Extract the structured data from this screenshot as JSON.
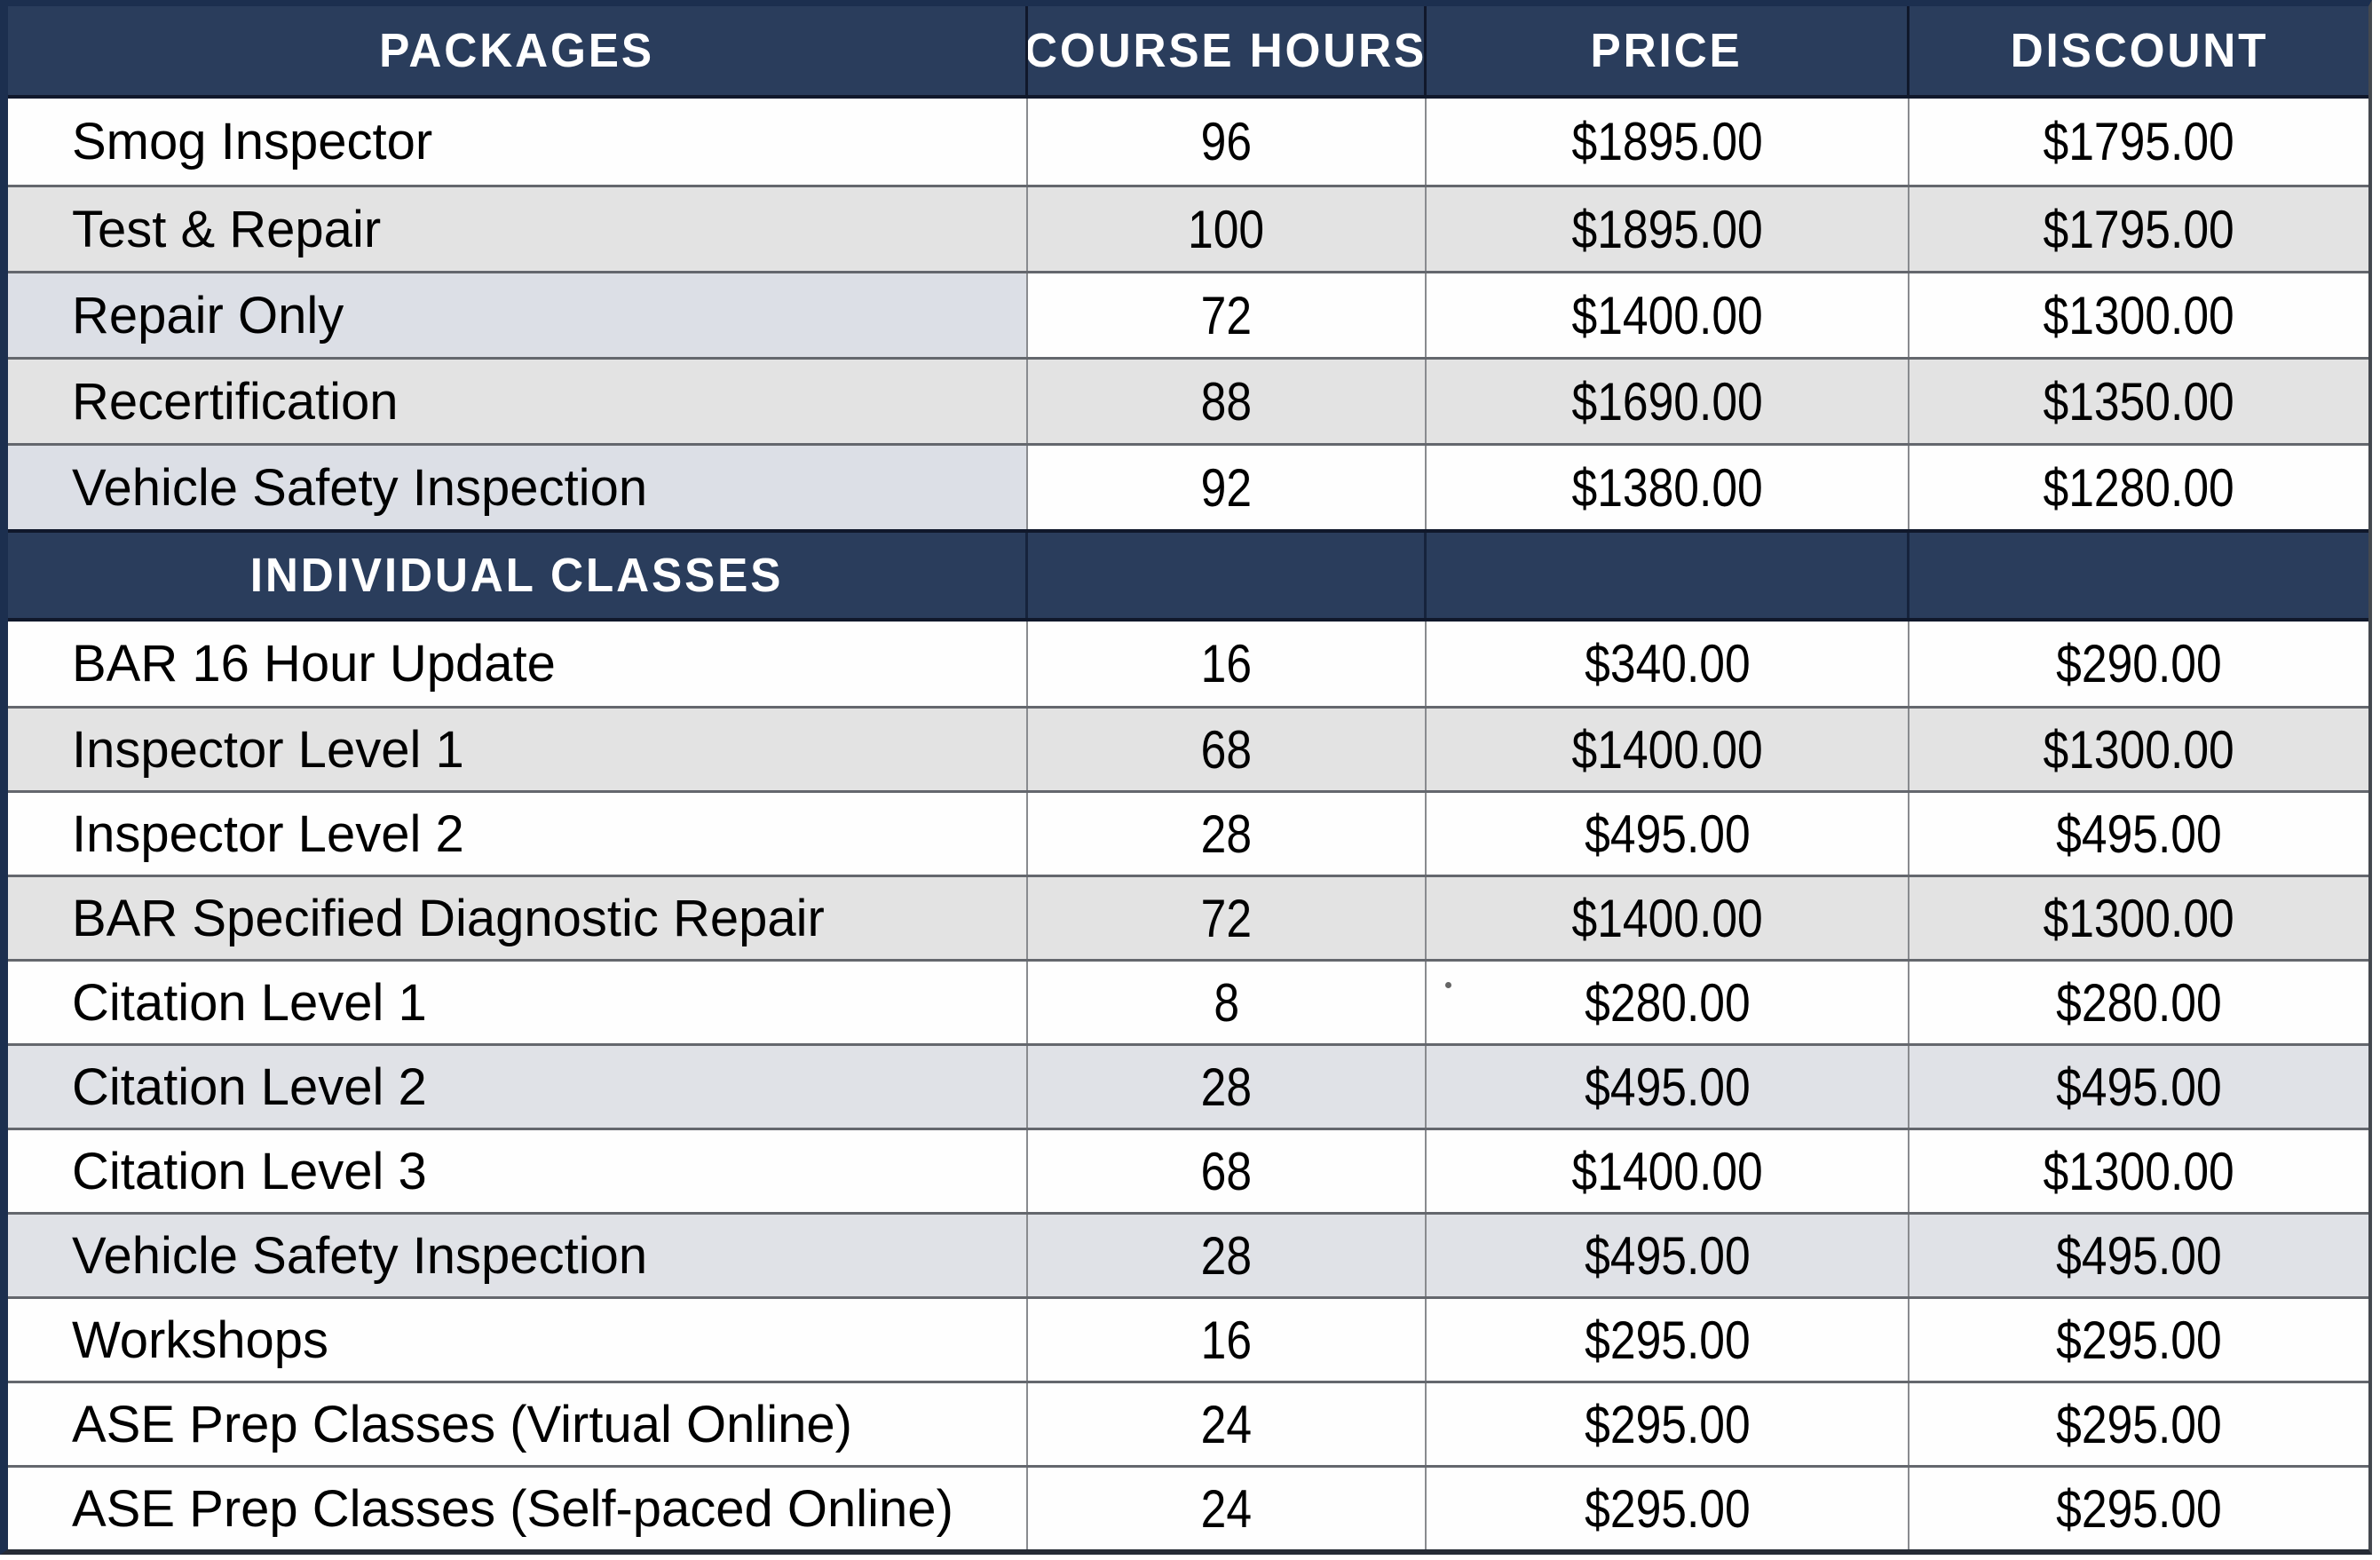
{
  "header": {
    "columns": [
      "PACKAGES",
      "COURSE HOURS",
      "PRICE",
      "DISCOUNT"
    ]
  },
  "section_label": "INDIVIDUAL CLASSES",
  "packages": [
    {
      "name": "Smog Inspector",
      "hours": "96",
      "price": "$1895.00",
      "discount": "$1795.00"
    },
    {
      "name": "Test & Repair",
      "hours": "100",
      "price": "$1895.00",
      "discount": "$1795.00"
    },
    {
      "name": "Repair Only",
      "hours": "72",
      "price": "$1400.00",
      "discount": "$1300.00"
    },
    {
      "name": "Recertification",
      "hours": "88",
      "price": "$1690.00",
      "discount": "$1350.00"
    },
    {
      "name": "Vehicle Safety Inspection",
      "hours": "92",
      "price": "$1380.00",
      "discount": "$1280.00"
    }
  ],
  "individual_classes": [
    {
      "name": "BAR 16 Hour Update",
      "hours": "16",
      "price": "$340.00",
      "discount": "$290.00"
    },
    {
      "name": "Inspector Level 1",
      "hours": "68",
      "price": "$1400.00",
      "discount": "$1300.00"
    },
    {
      "name": "Inspector Level 2",
      "hours": "28",
      "price": "$495.00",
      "discount": "$495.00"
    },
    {
      "name": "BAR Specified Diagnostic Repair",
      "hours": "72",
      "price": "$1400.00",
      "discount": "$1300.00"
    },
    {
      "name": "Citation Level 1",
      "hours": "8",
      "price": "$280.00",
      "discount": "$280.00"
    },
    {
      "name": "Citation Level 2",
      "hours": "28",
      "price": "$495.00",
      "discount": "$495.00"
    },
    {
      "name": "Citation Level 3",
      "hours": "68",
      "price": "$1400.00",
      "discount": "$1300.00"
    },
    {
      "name": "Vehicle Safety Inspection",
      "hours": "28",
      "price": "$495.00",
      "discount": "$495.00"
    },
    {
      "name": "Workshops",
      "hours": "16",
      "price": "$295.00",
      "discount": "$295.00"
    },
    {
      "name": "ASE Prep Classes (Virtual Online)",
      "hours": "24",
      "price": "$295.00",
      "discount": "$295.00"
    },
    {
      "name": "ASE Prep Classes (Self-paced Online)",
      "hours": "24",
      "price": "$295.00",
      "discount": "$295.00"
    }
  ],
  "colors": {
    "header_navy": "#2a3d5c",
    "outer_border_navy": "#1c2f4f",
    "row_white": "#fefefe",
    "row_gray": "#e3e3e3",
    "row_blue_gray": "#dcdfe6",
    "grid_line": "#64676d",
    "header_text": "#ffffff",
    "body_text": "#000000"
  }
}
